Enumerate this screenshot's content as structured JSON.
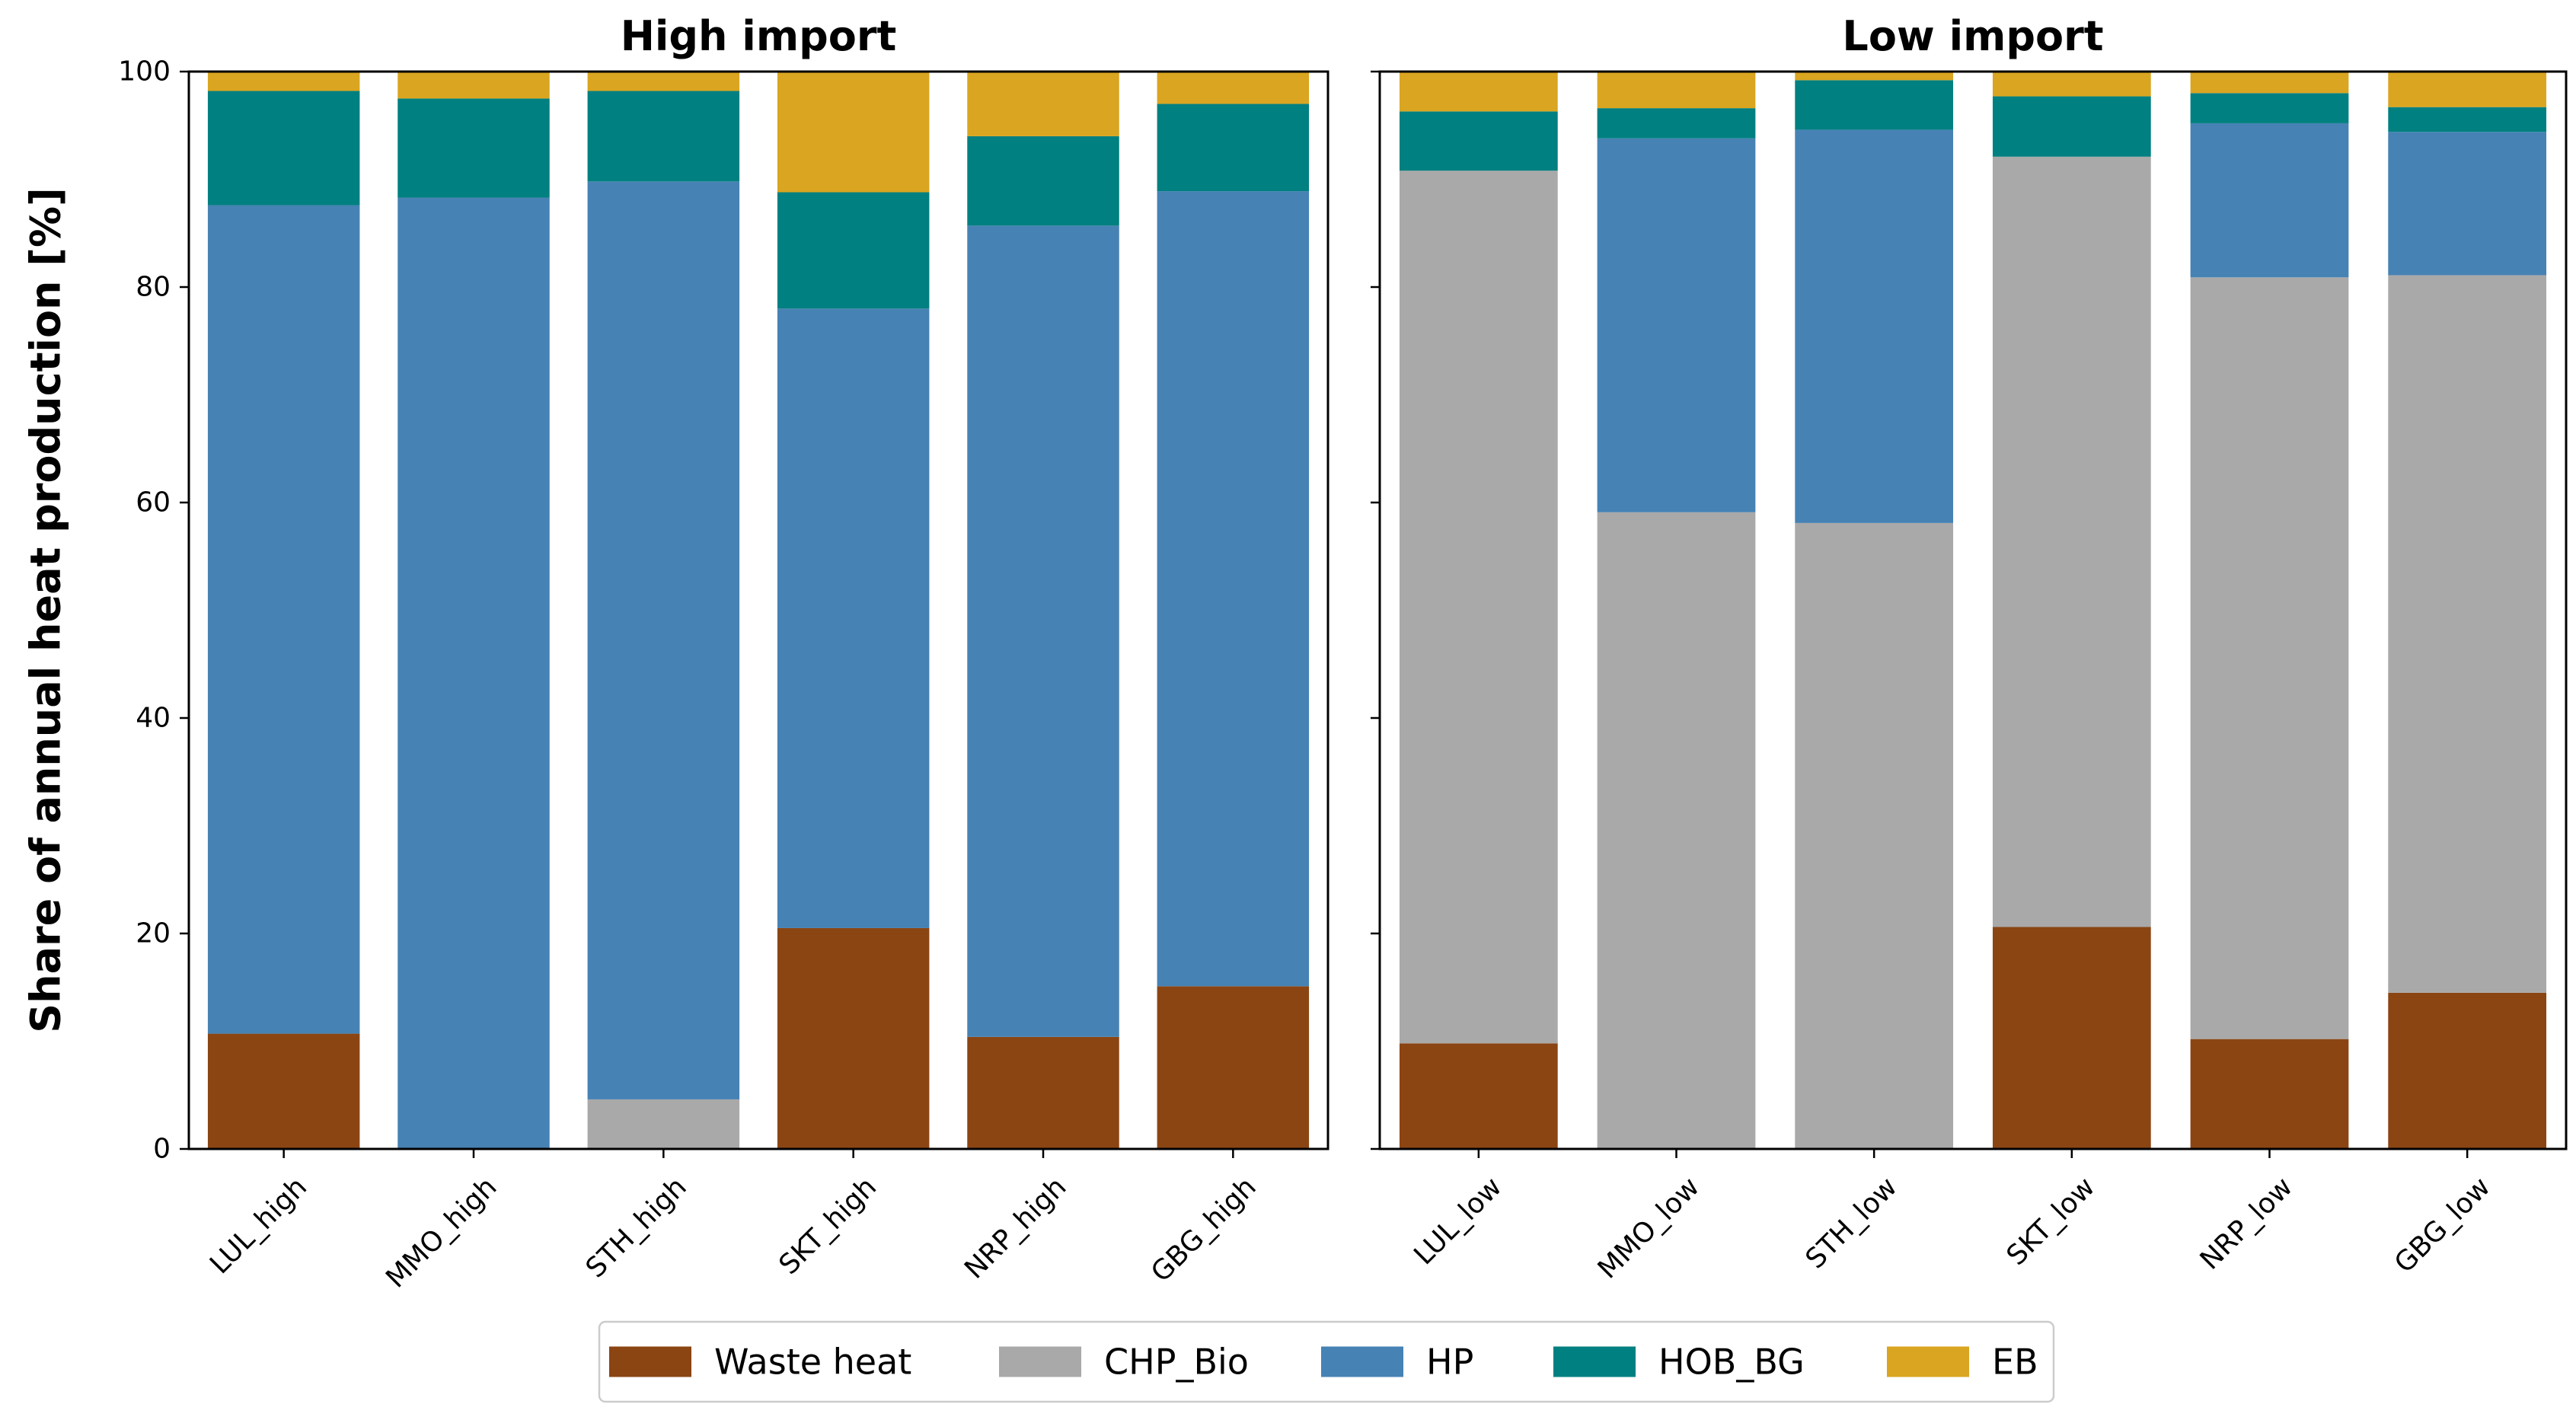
{
  "figure": {
    "ylabel": "Share of annual heat production [%]",
    "yticks": [
      0,
      20,
      40,
      60,
      80,
      100
    ],
    "ylim": [
      0,
      100
    ],
    "legend_position": "bottom-center"
  },
  "series_meta": [
    {
      "name": "Waste heat",
      "color": "#8B4513"
    },
    {
      "name": "CHP_Bio",
      "color": "#A9A9A9"
    },
    {
      "name": "HP",
      "color": "#4682B4"
    },
    {
      "name": "HOB_BG",
      "color": "#008080"
    },
    {
      "name": "EB",
      "color": "#DAA520"
    }
  ],
  "chart_data": [
    {
      "type": "bar",
      "stacked": true,
      "title": "High import",
      "xlabel": "",
      "ylabel": "Share of annual heat production [%]",
      "ylim": [
        0,
        100
      ],
      "categories": [
        "LUL_high",
        "MMO_high",
        "STH_high",
        "SKT_high",
        "NRP_high",
        "GBG_high"
      ],
      "series": [
        {
          "name": "Waste heat",
          "values": [
            10.7,
            0,
            0,
            20.5,
            10.4,
            15.1
          ]
        },
        {
          "name": "CHP_Bio",
          "values": [
            0,
            0,
            4.6,
            0,
            0,
            0
          ]
        },
        {
          "name": "HP",
          "values": [
            76.9,
            88.3,
            85.2,
            57.5,
            75.3,
            73.8
          ]
        },
        {
          "name": "HOB_BG",
          "values": [
            10.6,
            9.2,
            8.4,
            10.8,
            8.3,
            8.1
          ]
        },
        {
          "name": "EB",
          "values": [
            1.8,
            2.5,
            1.8,
            11.2,
            6.0,
            3.0
          ]
        }
      ]
    },
    {
      "type": "bar",
      "stacked": true,
      "title": "Low import",
      "xlabel": "",
      "ylabel": "",
      "ylim": [
        0,
        100
      ],
      "categories": [
        "LUL_low",
        "MMO_low",
        "STH_low",
        "SKT_low",
        "NRP_low",
        "GBG_low"
      ],
      "series": [
        {
          "name": "Waste heat",
          "values": [
            9.8,
            0,
            0,
            20.6,
            10.2,
            14.5
          ]
        },
        {
          "name": "CHP_Bio",
          "values": [
            81.0,
            59.1,
            58.1,
            71.5,
            70.7,
            66.6
          ]
        },
        {
          "name": "HP",
          "values": [
            0,
            34.7,
            36.5,
            0,
            14.3,
            13.3
          ]
        },
        {
          "name": "HOB_BG",
          "values": [
            5.5,
            2.8,
            4.6,
            5.6,
            2.8,
            2.3
          ]
        },
        {
          "name": "EB",
          "values": [
            3.7,
            3.4,
            0.8,
            2.3,
            2.0,
            3.3
          ]
        }
      ]
    }
  ]
}
